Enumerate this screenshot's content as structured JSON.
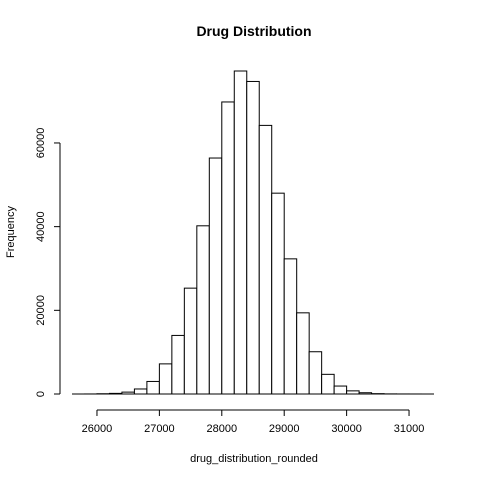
{
  "chart_data": {
    "type": "bar",
    "title": "Drug Distribution",
    "xlabel": "drug_distribution_rounded",
    "ylabel": "Frequency",
    "bin_edges": [
      25600,
      25800,
      26000,
      26200,
      26400,
      26600,
      26800,
      27000,
      27200,
      27400,
      27600,
      27800,
      28000,
      28200,
      28400,
      28600,
      28800,
      29000,
      29200,
      29400,
      29600,
      29800,
      30000,
      30200,
      30400,
      30600,
      30800,
      31000,
      31200,
      31400
    ],
    "values": [
      0,
      10,
      60,
      150,
      450,
      1200,
      3000,
      7200,
      14000,
      25300,
      40200,
      56400,
      69800,
      77200,
      74700,
      64200,
      48000,
      32300,
      19400,
      10100,
      4700,
      1900,
      750,
      300,
      80,
      25,
      10,
      5,
      0
    ],
    "xlim": [
      25600,
      31400
    ],
    "ylim": [
      0,
      77200
    ],
    "x_ticks": [
      26000,
      27000,
      28000,
      29000,
      30000,
      31000
    ],
    "y_ticks": [
      0,
      20000,
      40000,
      60000
    ],
    "grid": false,
    "legend": "none"
  }
}
